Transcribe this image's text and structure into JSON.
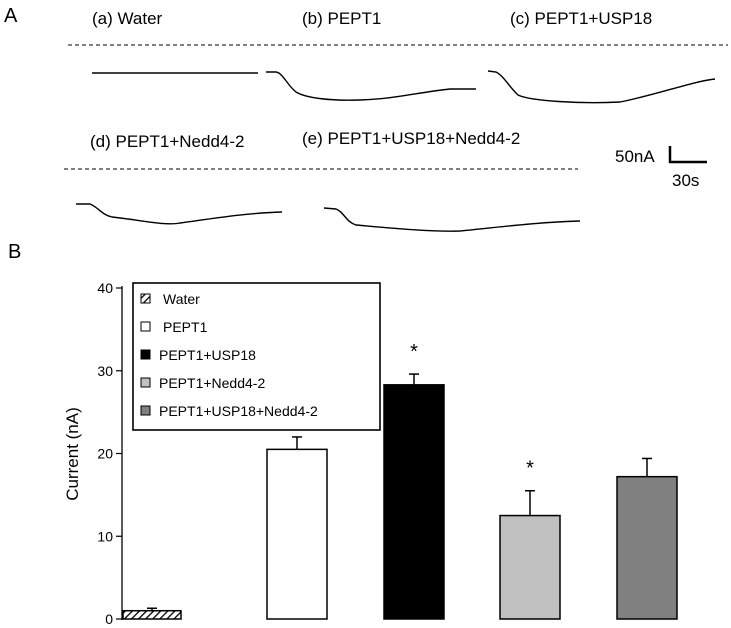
{
  "panel_a": {
    "label": "A",
    "traces": [
      {
        "id": "a",
        "label": "(a) Water"
      },
      {
        "id": "b",
        "label": "(b) PEPT1"
      },
      {
        "id": "c",
        "label": "(c) PEPT1+USP18"
      },
      {
        "id": "d",
        "label": "(d) PEPT1+Nedd4-2"
      },
      {
        "id": "e",
        "label": "(e) PEPT1+USP18+Nedd4-2"
      }
    ],
    "scale_bar": {
      "current": "50nA",
      "time": "30s"
    }
  },
  "chart_data": {
    "type": "bar",
    "panel_label": "B",
    "ylabel": "Current (nA)",
    "xlabel": "",
    "ylim": [
      0,
      40
    ],
    "yticks": [
      0,
      10,
      20,
      30,
      40
    ],
    "categories": [
      "Water",
      "PEPT1",
      "PEPT1+USP18",
      "PEPT1+Nedd4-2",
      "PEPT1+USP18+Nedd4-2"
    ],
    "values": [
      1.0,
      20.5,
      28.3,
      12.5,
      17.2
    ],
    "errors": [
      0.3,
      1.5,
      1.3,
      3.0,
      2.2
    ],
    "significance": [
      "",
      "",
      "*",
      "*",
      ""
    ],
    "legend": {
      "placement": "top-left",
      "entries": [
        "Water",
        "PEPT1",
        "PEPT1+USP18",
        "PEPT1+Nedd4-2",
        "PEPT1+USP18+Nedd4-2"
      ]
    },
    "colors": [
      "hatched",
      "#ffffff",
      "#000000",
      "#c0c0c0",
      "#808080"
    ],
    "grid": false
  }
}
